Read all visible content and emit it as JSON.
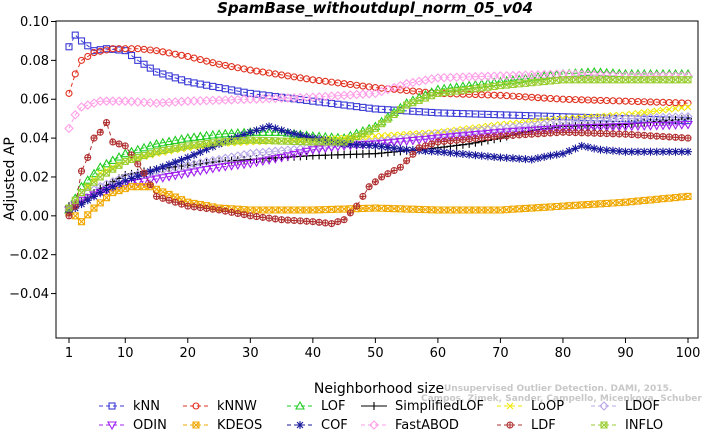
{
  "chart_data": {
    "type": "line",
    "title": "SpamBase_withoutdupl_norm_05_v04",
    "xlabel": "Neighborhood size",
    "ylabel": "Adjusted AP",
    "xlim": [
      1,
      100
    ],
    "ylim": [
      -0.05,
      0.1
    ],
    "x_ticks": [
      1,
      10,
      20,
      30,
      40,
      50,
      60,
      70,
      80,
      90,
      100
    ],
    "y_ticks": [
      -0.04,
      -0.02,
      0.0,
      0.02,
      0.04,
      0.06,
      0.08,
      0.1
    ],
    "x_tick_labels": [
      "1",
      "10",
      "20",
      "30",
      "40",
      "50",
      "60",
      "70",
      "80",
      "90",
      "100"
    ],
    "y_tick_labels": [
      "−0.04",
      "−0.02",
      "0.00",
      "0.02",
      "0.04",
      "0.06",
      "0.08",
      "0.10"
    ],
    "grid": false,
    "legend_position": "bottom",
    "credit": "Campos, Zimek, Sander, Campello, Micenkova, Schubert, Assent, Houle",
    "credit_line1": "Unsupervised Outlier Detection. DAMI, 2015.",
    "series": [
      {
        "name": "kNN",
        "color": "#3b3bd6",
        "marker": "square",
        "dash": "4,3",
        "points": [
          [
            1,
            0.087
          ],
          [
            2,
            0.093
          ],
          [
            3,
            0.09
          ],
          [
            5,
            0.085
          ],
          [
            7,
            0.086
          ],
          [
            10,
            0.085
          ],
          [
            12,
            0.08
          ],
          [
            15,
            0.074
          ],
          [
            20,
            0.069
          ],
          [
            25,
            0.066
          ],
          [
            30,
            0.063
          ],
          [
            40,
            0.059
          ],
          [
            50,
            0.055
          ],
          [
            60,
            0.053
          ],
          [
            70,
            0.052
          ],
          [
            80,
            0.051
          ],
          [
            90,
            0.05
          ],
          [
            100,
            0.049
          ]
        ]
      },
      {
        "name": "kNNW",
        "color": "#e0301e",
        "marker": "circle",
        "dash": "4,3",
        "points": [
          [
            1,
            0.063
          ],
          [
            2,
            0.073
          ],
          [
            3,
            0.08
          ],
          [
            5,
            0.084
          ],
          [
            8,
            0.086
          ],
          [
            12,
            0.086
          ],
          [
            15,
            0.085
          ],
          [
            20,
            0.082
          ],
          [
            25,
            0.078
          ],
          [
            30,
            0.075
          ],
          [
            40,
            0.07
          ],
          [
            50,
            0.066
          ],
          [
            60,
            0.063
          ],
          [
            70,
            0.062
          ],
          [
            80,
            0.06
          ],
          [
            90,
            0.059
          ],
          [
            100,
            0.058
          ]
        ]
      },
      {
        "name": "LOF",
        "color": "#22cc22",
        "marker": "triangle",
        "dash": "4,3",
        "points": [
          [
            1,
            0.003
          ],
          [
            3,
            0.015
          ],
          [
            6,
            0.025
          ],
          [
            10,
            0.032
          ],
          [
            15,
            0.037
          ],
          [
            20,
            0.04
          ],
          [
            25,
            0.042
          ],
          [
            30,
            0.043
          ],
          [
            35,
            0.043
          ],
          [
            40,
            0.041
          ],
          [
            45,
            0.04
          ],
          [
            50,
            0.046
          ],
          [
            55,
            0.058
          ],
          [
            60,
            0.065
          ],
          [
            65,
            0.067
          ],
          [
            70,
            0.069
          ],
          [
            75,
            0.071
          ],
          [
            80,
            0.073
          ],
          [
            85,
            0.074
          ],
          [
            90,
            0.073
          ],
          [
            100,
            0.073
          ]
        ]
      },
      {
        "name": "SimplifiedLOF",
        "color": "#000000",
        "marker": "plus",
        "dash": "",
        "points": [
          [
            1,
            0.005
          ],
          [
            3,
            0.007
          ],
          [
            6,
            0.014
          ],
          [
            10,
            0.021
          ],
          [
            15,
            0.024
          ],
          [
            20,
            0.026
          ],
          [
            25,
            0.028
          ],
          [
            30,
            0.029
          ],
          [
            40,
            0.031
          ],
          [
            50,
            0.032
          ],
          [
            60,
            0.035
          ],
          [
            65,
            0.037
          ],
          [
            70,
            0.04
          ],
          [
            75,
            0.044
          ],
          [
            80,
            0.046
          ],
          [
            90,
            0.047
          ],
          [
            100,
            0.05
          ]
        ]
      },
      {
        "name": "LoOP",
        "color": "#f2e600",
        "marker": "x",
        "dash": "4,3",
        "points": [
          [
            1,
            0.001
          ],
          [
            3,
            0.012
          ],
          [
            6,
            0.022
          ],
          [
            10,
            0.028
          ],
          [
            15,
            0.032
          ],
          [
            20,
            0.035
          ],
          [
            25,
            0.037
          ],
          [
            30,
            0.038
          ],
          [
            40,
            0.039
          ],
          [
            50,
            0.041
          ],
          [
            60,
            0.043
          ],
          [
            70,
            0.047
          ],
          [
            80,
            0.05
          ],
          [
            90,
            0.052
          ],
          [
            100,
            0.056
          ]
        ]
      },
      {
        "name": "LDOF",
        "color": "#b8a8e8",
        "marker": "diamond",
        "dash": "4,3",
        "points": [
          [
            1,
            0.003
          ],
          [
            3,
            0.01
          ],
          [
            6,
            0.015
          ],
          [
            10,
            0.02
          ],
          [
            15,
            0.023
          ],
          [
            20,
            0.026
          ],
          [
            25,
            0.029
          ],
          [
            30,
            0.032
          ],
          [
            40,
            0.035
          ],
          [
            50,
            0.038
          ],
          [
            60,
            0.042
          ],
          [
            70,
            0.045
          ],
          [
            80,
            0.048
          ],
          [
            90,
            0.05
          ],
          [
            100,
            0.051
          ]
        ]
      },
      {
        "name": "ODIN",
        "color": "#a020f0",
        "marker": "triangle-down",
        "dash": "4,3",
        "points": [
          [
            1,
            0.003
          ],
          [
            3,
            0.008
          ],
          [
            6,
            0.012
          ],
          [
            10,
            0.016
          ],
          [
            15,
            0.019
          ],
          [
            20,
            0.022
          ],
          [
            25,
            0.025
          ],
          [
            30,
            0.027
          ],
          [
            35,
            0.03
          ],
          [
            40,
            0.034
          ],
          [
            45,
            0.036
          ],
          [
            50,
            0.037
          ],
          [
            60,
            0.04
          ],
          [
            70,
            0.043
          ],
          [
            80,
            0.045
          ],
          [
            90,
            0.046
          ],
          [
            100,
            0.047
          ]
        ]
      },
      {
        "name": "KDEOS",
        "color": "#f0a800",
        "marker": "square-x",
        "dash": "4,3",
        "points": [
          [
            1,
            0.002
          ],
          [
            2,
            0.0
          ],
          [
            3,
            -0.003
          ],
          [
            5,
            0.004
          ],
          [
            8,
            0.012
          ],
          [
            11,
            0.015
          ],
          [
            14,
            0.015
          ],
          [
            17,
            0.011
          ],
          [
            20,
            0.007
          ],
          [
            25,
            0.004
          ],
          [
            30,
            0.003
          ],
          [
            40,
            0.003
          ],
          [
            50,
            0.004
          ],
          [
            60,
            0.003
          ],
          [
            70,
            0.003
          ],
          [
            80,
            0.005
          ],
          [
            90,
            0.007
          ],
          [
            100,
            0.01
          ]
        ]
      },
      {
        "name": "COF",
        "color": "#18189a",
        "marker": "star",
        "dash": "4,3",
        "points": [
          [
            1,
            0.002
          ],
          [
            3,
            0.006
          ],
          [
            6,
            0.012
          ],
          [
            10,
            0.018
          ],
          [
            15,
            0.024
          ],
          [
            20,
            0.03
          ],
          [
            25,
            0.037
          ],
          [
            30,
            0.043
          ],
          [
            33,
            0.046
          ],
          [
            36,
            0.043
          ],
          [
            40,
            0.04
          ],
          [
            45,
            0.037
          ],
          [
            50,
            0.036
          ],
          [
            55,
            0.034
          ],
          [
            60,
            0.033
          ],
          [
            70,
            0.03
          ],
          [
            75,
            0.029
          ],
          [
            78,
            0.031
          ],
          [
            80,
            0.032
          ],
          [
            83,
            0.036
          ],
          [
            86,
            0.034
          ],
          [
            90,
            0.033
          ],
          [
            100,
            0.033
          ]
        ]
      },
      {
        "name": "FastABOD",
        "color": "#ff9ee8",
        "marker": "diamond",
        "dash": "4,3",
        "points": [
          [
            1,
            0.045
          ],
          [
            2,
            0.052
          ],
          [
            3,
            0.056
          ],
          [
            6,
            0.059
          ],
          [
            10,
            0.059
          ],
          [
            15,
            0.058
          ],
          [
            20,
            0.059
          ],
          [
            30,
            0.06
          ],
          [
            40,
            0.061
          ],
          [
            50,
            0.063
          ],
          [
            55,
            0.068
          ],
          [
            60,
            0.071
          ],
          [
            70,
            0.072
          ],
          [
            80,
            0.073
          ],
          [
            90,
            0.072
          ],
          [
            100,
            0.072
          ]
        ]
      },
      {
        "name": "LDF",
        "color": "#b03030",
        "marker": "circle-plus",
        "dash": "4,3",
        "points": [
          [
            1,
            0.0
          ],
          [
            2,
            0.005
          ],
          [
            3,
            0.023
          ],
          [
            4,
            0.03
          ],
          [
            5,
            0.04
          ],
          [
            6,
            0.043
          ],
          [
            7,
            0.048
          ],
          [
            8,
            0.038
          ],
          [
            10,
            0.036
          ],
          [
            13,
            0.022
          ],
          [
            15,
            0.01
          ],
          [
            20,
            0.005
          ],
          [
            25,
            0.003
          ],
          [
            30,
            0.0
          ],
          [
            35,
            -0.002
          ],
          [
            40,
            -0.003
          ],
          [
            43,
            -0.004
          ],
          [
            45,
            -0.002
          ],
          [
            47,
            0.005
          ],
          [
            49,
            0.015
          ],
          [
            51,
            0.02
          ],
          [
            54,
            0.025
          ],
          [
            57,
            0.035
          ],
          [
            60,
            0.038
          ],
          [
            70,
            0.041
          ],
          [
            80,
            0.043
          ],
          [
            90,
            0.042
          ],
          [
            100,
            0.04
          ]
        ]
      },
      {
        "name": "INFLO",
        "color": "#9acd32",
        "marker": "square-x",
        "dash": "4,3",
        "points": [
          [
            1,
            0.004
          ],
          [
            3,
            0.012
          ],
          [
            6,
            0.02
          ],
          [
            10,
            0.028
          ],
          [
            15,
            0.033
          ],
          [
            20,
            0.036
          ],
          [
            25,
            0.038
          ],
          [
            30,
            0.039
          ],
          [
            40,
            0.038
          ],
          [
            45,
            0.038
          ],
          [
            50,
            0.045
          ],
          [
            55,
            0.057
          ],
          [
            60,
            0.063
          ],
          [
            70,
            0.067
          ],
          [
            80,
            0.07
          ],
          [
            90,
            0.07
          ],
          [
            100,
            0.07
          ]
        ]
      }
    ]
  }
}
